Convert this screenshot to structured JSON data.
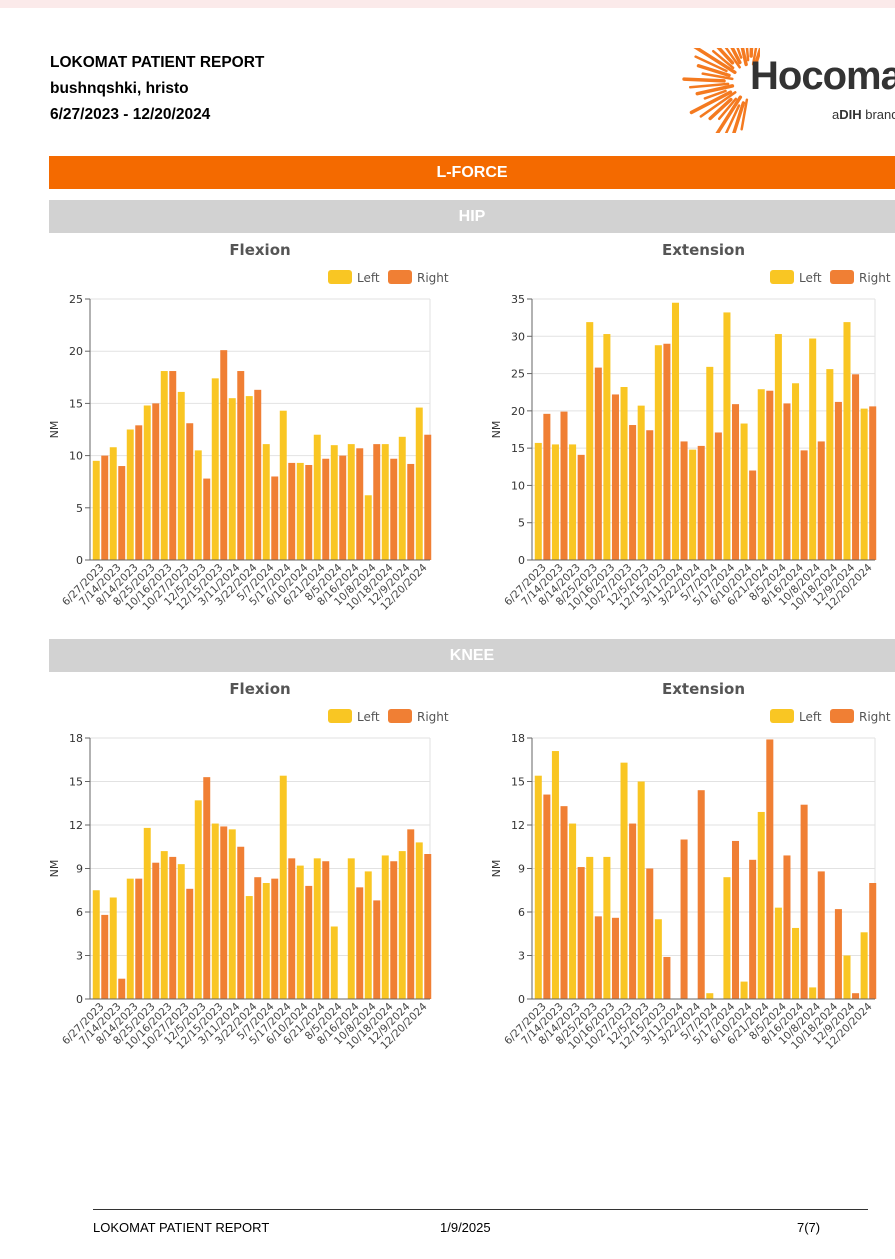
{
  "header": {
    "title": "LOKOMAT PATIENT REPORT",
    "patient": "bushnqshki, hristo",
    "date_range": "6/27/2023 - 12/20/2024"
  },
  "logo": {
    "word": "Hocoma",
    "sub_prefix": "a",
    "sub_brand": "DIH",
    "sub_suffix": " brand",
    "color": "#f47a20"
  },
  "section": {
    "title": "L-FORCE"
  },
  "subsections": {
    "hip": "HIP",
    "knee": "KNEE"
  },
  "colors": {
    "left": "#f9c623",
    "right": "#f07f34",
    "orange_band": "#f46a00",
    "grey_band": "#d2d2d2"
  },
  "footer": {
    "title": "LOKOMAT PATIENT REPORT",
    "date": "1/9/2025",
    "page": "7(7)"
  },
  "chart_data": [
    {
      "id": "hip-flexion",
      "type": "bar",
      "title": "Flexion",
      "xlabel": "",
      "ylabel": "NM",
      "ylim": [
        0,
        25
      ],
      "yticks": [
        0,
        5,
        10,
        15,
        20,
        25
      ],
      "grid": true,
      "legend_position": "top-right",
      "categories": [
        "6/27/2023",
        "7/14/2023",
        "8/14/2023",
        "8/25/2023",
        "10/16/2023",
        "10/27/2023",
        "12/5/2023",
        "12/15/2023",
        "3/11/2024",
        "3/22/2024",
        "5/7/2024",
        "5/17/2024",
        "6/10/2024",
        "6/21/2024",
        "8/5/2024",
        "8/16/2024",
        "10/8/2024",
        "10/18/2024",
        "12/9/2024",
        "12/20/2024"
      ],
      "series": [
        {
          "name": "Left",
          "values": [
            9.5,
            10.8,
            12.5,
            14.8,
            18.1,
            16.1,
            10.5,
            17.4,
            15.5,
            15.7,
            11.1,
            14.3,
            9.3,
            12.0,
            11.0,
            11.1,
            6.2,
            11.1,
            11.8,
            14.6
          ]
        },
        {
          "name": "Right",
          "values": [
            10.0,
            9.0,
            12.9,
            15.0,
            18.1,
            13.1,
            7.8,
            20.1,
            18.1,
            16.3,
            8.0,
            9.3,
            9.1,
            9.7,
            10.0,
            10.7,
            11.1,
            9.7,
            9.2,
            12.0
          ]
        }
      ]
    },
    {
      "id": "hip-extension",
      "type": "bar",
      "title": "Extension",
      "xlabel": "",
      "ylabel": "NM",
      "ylim": [
        0,
        35
      ],
      "yticks": [
        0,
        5,
        10,
        15,
        20,
        25,
        30,
        35
      ],
      "grid": true,
      "legend_position": "top-right",
      "categories": [
        "6/27/2023",
        "7/14/2023",
        "8/14/2023",
        "8/25/2023",
        "10/16/2023",
        "10/27/2023",
        "12/5/2023",
        "12/15/2023",
        "3/11/2024",
        "3/22/2024",
        "5/7/2024",
        "5/17/2024",
        "6/10/2024",
        "6/21/2024",
        "8/5/2024",
        "8/16/2024",
        "10/8/2024",
        "10/18/2024",
        "12/9/2024",
        "12/20/2024"
      ],
      "series": [
        {
          "name": "Left",
          "values": [
            15.7,
            15.5,
            15.5,
            31.9,
            30.3,
            23.2,
            20.7,
            28.8,
            34.5,
            14.8,
            25.9,
            33.2,
            18.3,
            22.9,
            30.3,
            23.7,
            29.7,
            25.6,
            31.9,
            20.3
          ]
        },
        {
          "name": "Right",
          "values": [
            19.6,
            19.9,
            14.1,
            25.8,
            22.2,
            18.1,
            17.4,
            29.0,
            15.9,
            15.3,
            17.1,
            20.9,
            12.0,
            22.7,
            21.0,
            14.7,
            15.9,
            21.2,
            24.9,
            20.6
          ]
        }
      ]
    },
    {
      "id": "knee-flexion",
      "type": "bar",
      "title": "Flexion",
      "xlabel": "",
      "ylabel": "NM",
      "ylim": [
        0,
        18
      ],
      "yticks": [
        0,
        3,
        6,
        9,
        12,
        15,
        18
      ],
      "grid": true,
      "legend_position": "top-right",
      "categories": [
        "6/27/2023",
        "7/14/2023",
        "8/14/2023",
        "8/25/2023",
        "10/16/2023",
        "10/27/2023",
        "12/5/2023",
        "12/15/2023",
        "3/11/2024",
        "3/22/2024",
        "5/7/2024",
        "5/17/2024",
        "6/10/2024",
        "6/21/2024",
        "8/5/2024",
        "8/16/2024",
        "10/8/2024",
        "10/18/2024",
        "12/9/2024",
        "12/20/2024"
      ],
      "series": [
        {
          "name": "Left",
          "values": [
            7.5,
            7.0,
            8.3,
            11.8,
            10.2,
            9.3,
            13.7,
            12.1,
            11.7,
            7.1,
            8.0,
            15.4,
            9.2,
            9.7,
            5.0,
            9.7,
            8.8,
            9.9,
            10.2,
            10.8
          ]
        },
        {
          "name": "Right",
          "values": [
            5.8,
            1.4,
            8.3,
            9.4,
            9.8,
            7.6,
            15.3,
            11.9,
            10.5,
            8.4,
            8.3,
            9.7,
            7.8,
            9.5,
            0.0,
            7.7,
            6.8,
            9.5,
            11.7,
            10.0
          ]
        }
      ]
    },
    {
      "id": "knee-extension",
      "type": "bar",
      "title": "Extension",
      "xlabel": "",
      "ylabel": "NM",
      "ylim": [
        0,
        18
      ],
      "yticks": [
        0,
        3,
        6,
        9,
        12,
        15,
        18
      ],
      "grid": true,
      "legend_position": "top-right",
      "categories": [
        "6/27/2023",
        "7/14/2023",
        "8/14/2023",
        "8/25/2023",
        "10/16/2023",
        "10/27/2023",
        "12/5/2023",
        "12/15/2023",
        "3/11/2024",
        "3/22/2024",
        "5/7/2024",
        "5/17/2024",
        "6/10/2024",
        "6/21/2024",
        "8/5/2024",
        "8/16/2024",
        "10/8/2024",
        "10/18/2024",
        "12/9/2024",
        "12/20/2024"
      ],
      "series": [
        {
          "name": "Left",
          "values": [
            15.4,
            17.1,
            12.1,
            9.8,
            9.8,
            16.3,
            15.0,
            5.5,
            0.0,
            0.0,
            0.4,
            8.4,
            1.2,
            12.9,
            6.3,
            4.9,
            0.8,
            0.0,
            3.0,
            4.6
          ]
        },
        {
          "name": "Right",
          "values": [
            14.1,
            13.3,
            9.1,
            5.7,
            5.6,
            12.1,
            9.0,
            2.9,
            11.0,
            14.4,
            0.0,
            10.9,
            9.6,
            17.9,
            9.9,
            13.4,
            8.8,
            6.2,
            0.4,
            8.0
          ]
        }
      ]
    }
  ]
}
